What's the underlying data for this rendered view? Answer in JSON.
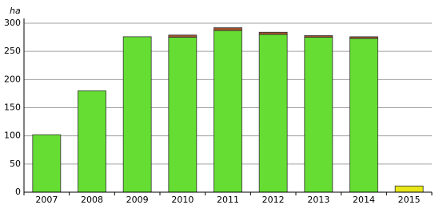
{
  "chart_data": {
    "type": "bar",
    "stacked": true,
    "y_label": "ha",
    "categories": [
      "2007",
      "2008",
      "2009",
      "2010",
      "2011",
      "2012",
      "2013",
      "2014",
      "2015"
    ],
    "series": [
      {
        "color": "#66dd33",
        "values": [
          102,
          180,
          276,
          275,
          287,
          280,
          275,
          273,
          null
        ]
      },
      {
        "color": "#a0522d",
        "values": [
          null,
          null,
          null,
          4,
          5,
          4,
          3,
          3,
          null
        ]
      },
      {
        "color": "#e6e619",
        "values": [
          null,
          null,
          null,
          null,
          null,
          null,
          null,
          null,
          11
        ]
      }
    ],
    "ylim": [
      0,
      300
    ],
    "yticks": [
      0,
      50,
      100,
      150,
      200,
      250,
      300
    ],
    "grid": true
  }
}
